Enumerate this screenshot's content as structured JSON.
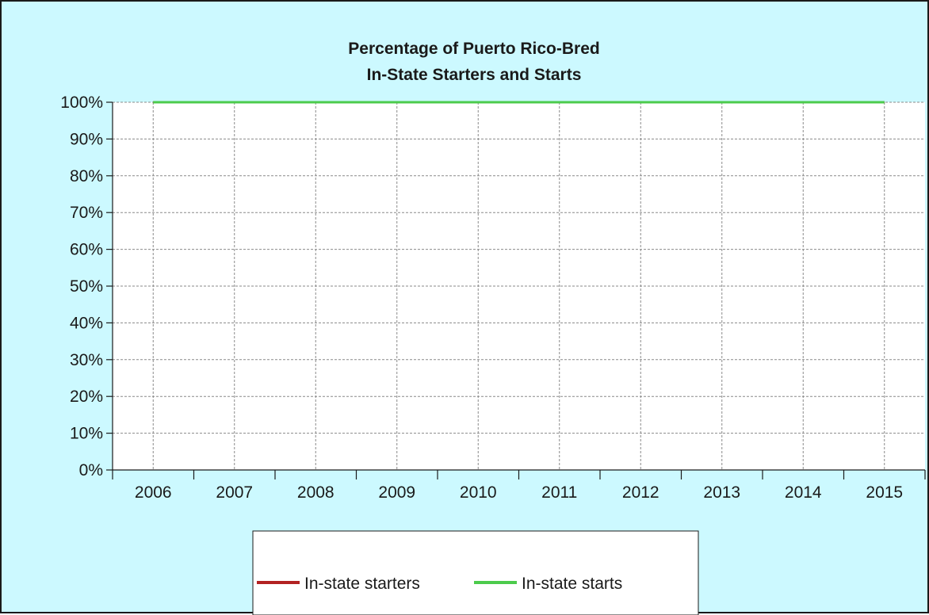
{
  "chart_data": {
    "type": "line",
    "title": [
      "Percentage of Puerto Rico-Bred",
      "In-State Starters and Starts"
    ],
    "xlabel": "",
    "ylabel": "",
    "categories": [
      "2006",
      "2007",
      "2008",
      "2009",
      "2010",
      "2011",
      "2012",
      "2013",
      "2014",
      "2015"
    ],
    "ylim": [
      0,
      100
    ],
    "y_ticks": [
      "0%",
      "10%",
      "20%",
      "30%",
      "40%",
      "50%",
      "60%",
      "70%",
      "80%",
      "90%",
      "100%"
    ],
    "y_tick_values": [
      0,
      10,
      20,
      30,
      40,
      50,
      60,
      70,
      80,
      90,
      100
    ],
    "grid": true,
    "legend_position": "bottom",
    "series": [
      {
        "name": "In-state starters",
        "color": "#b22222",
        "values": [
          100,
          100,
          100,
          100,
          100,
          100,
          100,
          100,
          100,
          100
        ]
      },
      {
        "name": "In-state starts",
        "color": "#4ccb4c",
        "values": [
          100,
          100,
          100,
          100,
          100,
          100,
          100,
          100,
          100,
          100
        ]
      }
    ]
  }
}
